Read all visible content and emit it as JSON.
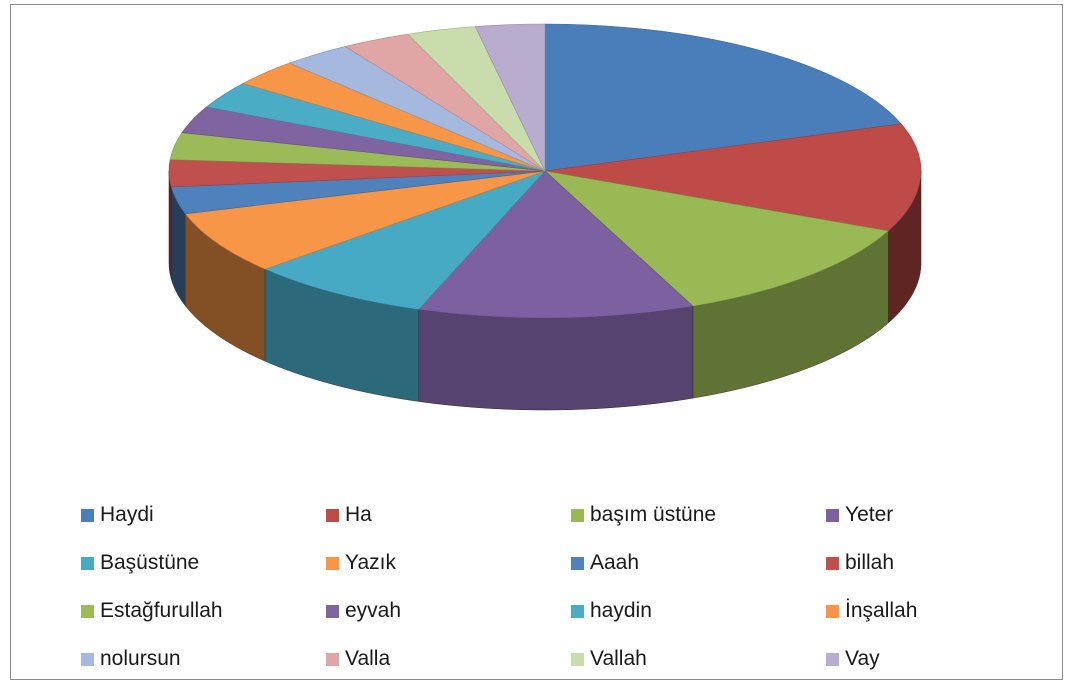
{
  "chart_data": {
    "type": "pie",
    "style": "3d-perspective",
    "title": "",
    "legend_position": "bottom",
    "categories": [
      "Haydi",
      "Ha",
      "başım üstüne",
      "Yeter",
      "Başüstüne",
      "Yazık",
      "Aaah",
      "billah",
      "Estağfurullah",
      "eyvah",
      "haydin",
      "İnşallah",
      "nolursun",
      "Valla",
      "Vallah",
      "Vay"
    ],
    "values": [
      20,
      12,
      12,
      12,
      8,
      7,
      3,
      3,
      3,
      3,
      3,
      3,
      3,
      3,
      3,
      3
    ],
    "colors": [
      "#4a7ebb",
      "#be4b48",
      "#98b954",
      "#7d60a0",
      "#46aac5",
      "#f79646",
      "#4f81bd",
      "#c0504d",
      "#9bbb59",
      "#8064a2",
      "#4bacc6",
      "#f79646",
      "#a5b8dd",
      "#e0a6a5",
      "#c9dcac",
      "#b9adcf"
    ]
  }
}
